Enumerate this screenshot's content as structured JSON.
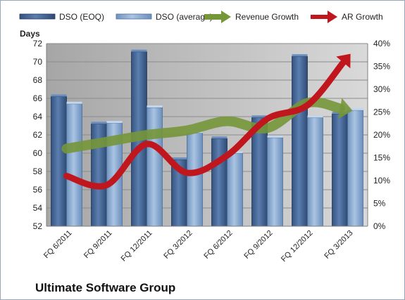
{
  "chart_data": {
    "type": "bar",
    "title": "Ultimate Software Group",
    "ylabel": "Days",
    "y2label": "",
    "ylim": [
      52,
      72
    ],
    "y2lim": [
      0,
      40
    ],
    "yticks": [
      52,
      54,
      56,
      58,
      60,
      62,
      64,
      66,
      68,
      70,
      72
    ],
    "y2ticks": [
      "0%",
      "5%",
      "10%",
      "15%",
      "20%",
      "25%",
      "30%",
      "35%",
      "40%"
    ],
    "categories": [
      "FQ 6/2011",
      "FQ 9/2011",
      "FQ 12/2011",
      "FQ 3/2012",
      "FQ 6/2012",
      "FQ 9/2012",
      "FQ 12/2012",
      "FQ 3/2013"
    ],
    "legend_position": "top",
    "grid": "horizontal",
    "series": [
      {
        "name": "DSO (EOQ)",
        "type": "bar",
        "axis": "left",
        "color": "#3f5f8f",
        "values": [
          66.2,
          63.2,
          71.1,
          59.3,
          61.6,
          63.9,
          70.6,
          64.3
        ]
      },
      {
        "name": "DSO (average)",
        "type": "bar",
        "axis": "left",
        "color": "#7fa1c9",
        "values": [
          65.4,
          63.3,
          65.0,
          62.2,
          60.0,
          61.7,
          63.9,
          64.7
        ]
      },
      {
        "name": "Revenue Growth",
        "type": "line",
        "axis": "right",
        "color": "#76963a",
        "values": [
          17.0,
          18.5,
          20.0,
          21.0,
          23.0,
          21.5,
          27.0,
          25.5
        ]
      },
      {
        "name": "AR Growth",
        "type": "line",
        "axis": "right",
        "color": "#c0171e",
        "values": [
          11.0,
          9.0,
          18.0,
          11.7,
          15.5,
          23.5,
          26.5,
          37.0
        ]
      }
    ]
  }
}
